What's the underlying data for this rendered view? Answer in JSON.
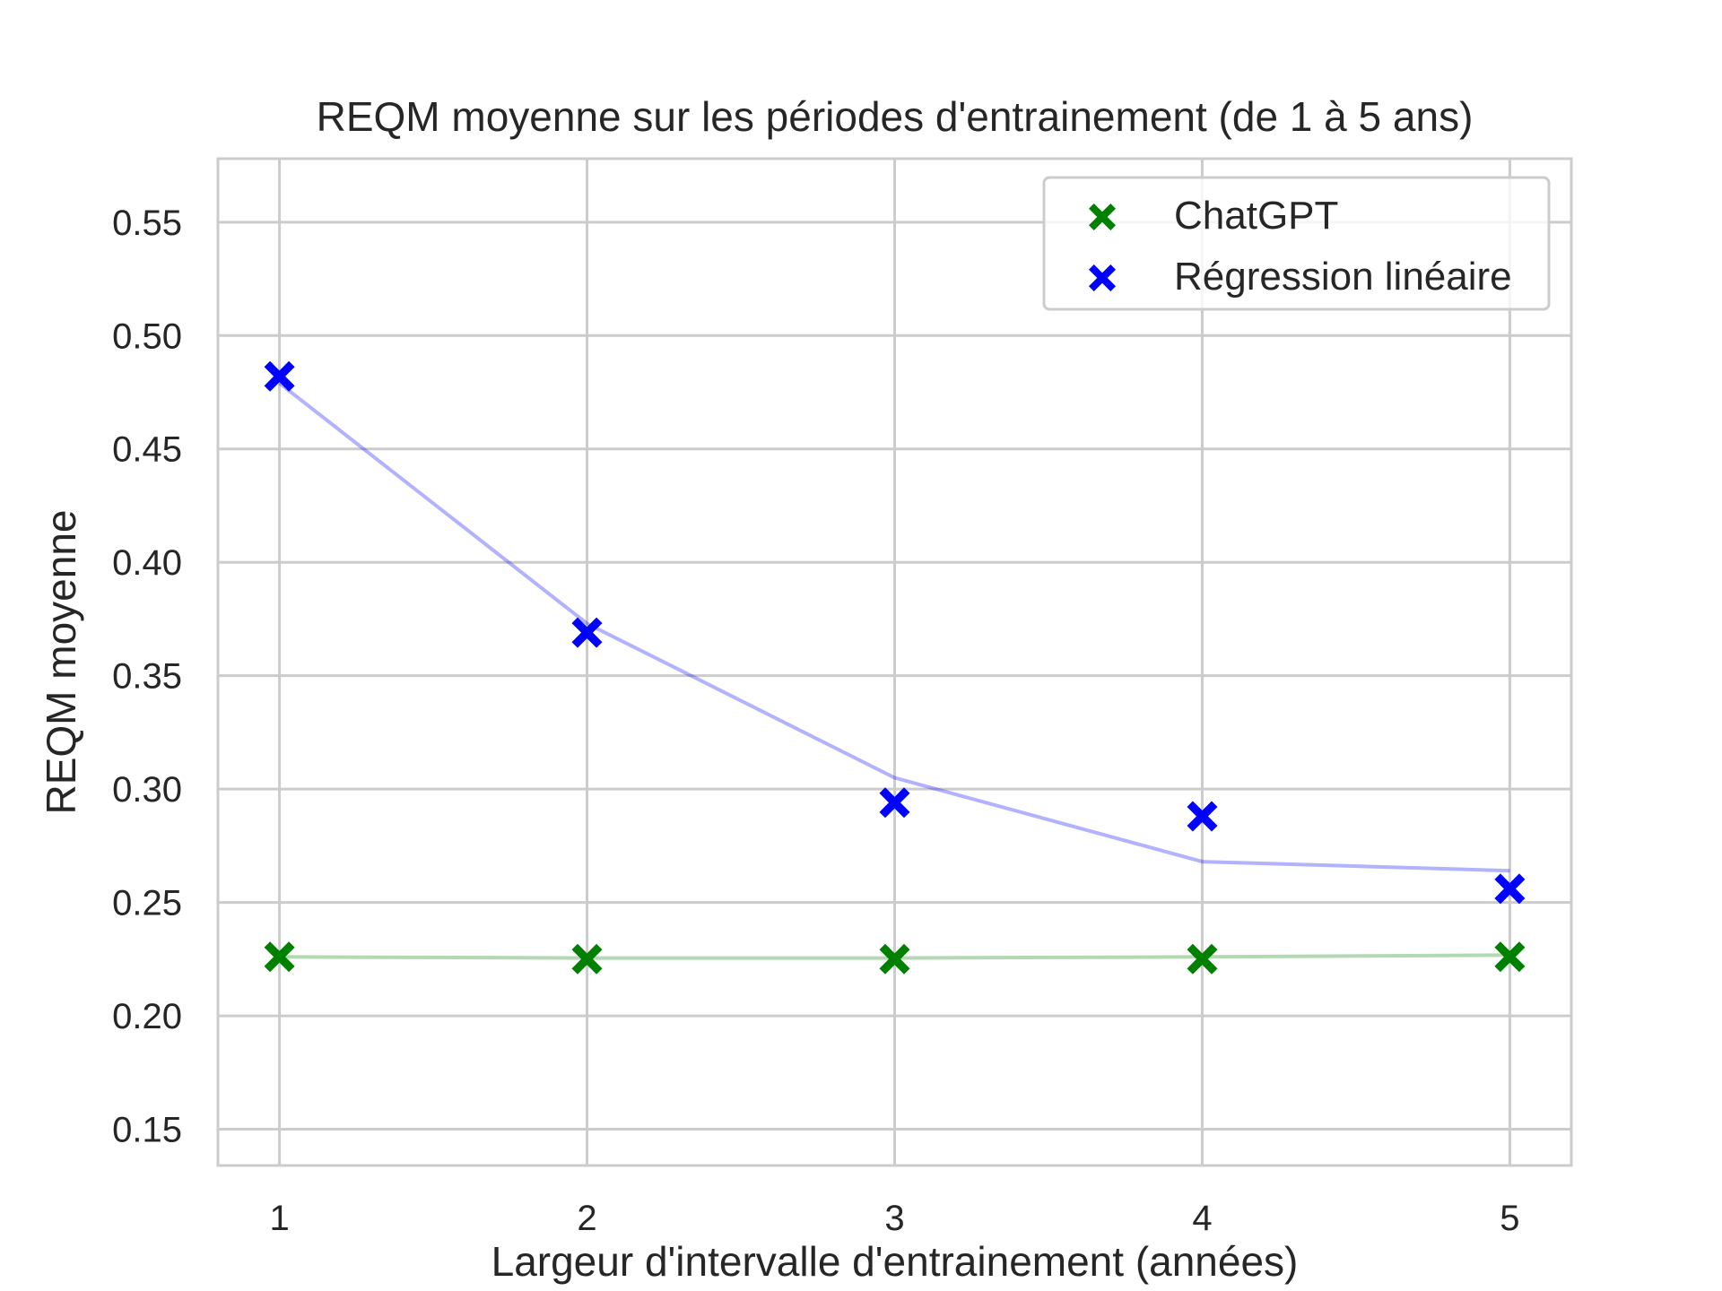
{
  "chart_data": {
    "type": "scatter",
    "title": "REQM moyenne sur les périodes d'entrainement (de 1 à 5 ans)",
    "xlabel": "Largeur d'intervalle d'entrainement (années)",
    "ylabel": "REQM moyenne",
    "x": [
      1,
      2,
      3,
      4,
      5
    ],
    "x_tick_labels": [
      "1",
      "2",
      "3",
      "4",
      "5"
    ],
    "y_ticks": [
      0.15,
      0.2,
      0.25,
      0.3,
      0.35,
      0.4,
      0.45,
      0.5,
      0.55
    ],
    "y_tick_labels": [
      "0.15",
      "0.20",
      "0.25",
      "0.30",
      "0.35",
      "0.40",
      "0.45",
      "0.50",
      "0.55"
    ],
    "xlim": [
      0.8,
      5.2
    ],
    "ylim": [
      0.134,
      0.578
    ],
    "grid": true,
    "legend_position": "top-right",
    "series": [
      {
        "name": "ChatGPT",
        "color": "#008000",
        "marker": "X",
        "values": [
          0.226,
          0.225,
          0.225,
          0.225,
          0.226
        ],
        "fit_line": [
          0.226,
          0.2255,
          0.2255,
          0.226,
          0.2268
        ],
        "fit_color": "#008000"
      },
      {
        "name": "Régression linéaire",
        "color": "#0000ff",
        "marker": "X",
        "values": [
          0.482,
          0.369,
          0.294,
          0.288,
          0.256
        ],
        "fit_line": [
          0.479,
          0.373,
          0.305,
          0.268,
          0.264
        ],
        "fit_color": "#0000ff"
      }
    ]
  }
}
